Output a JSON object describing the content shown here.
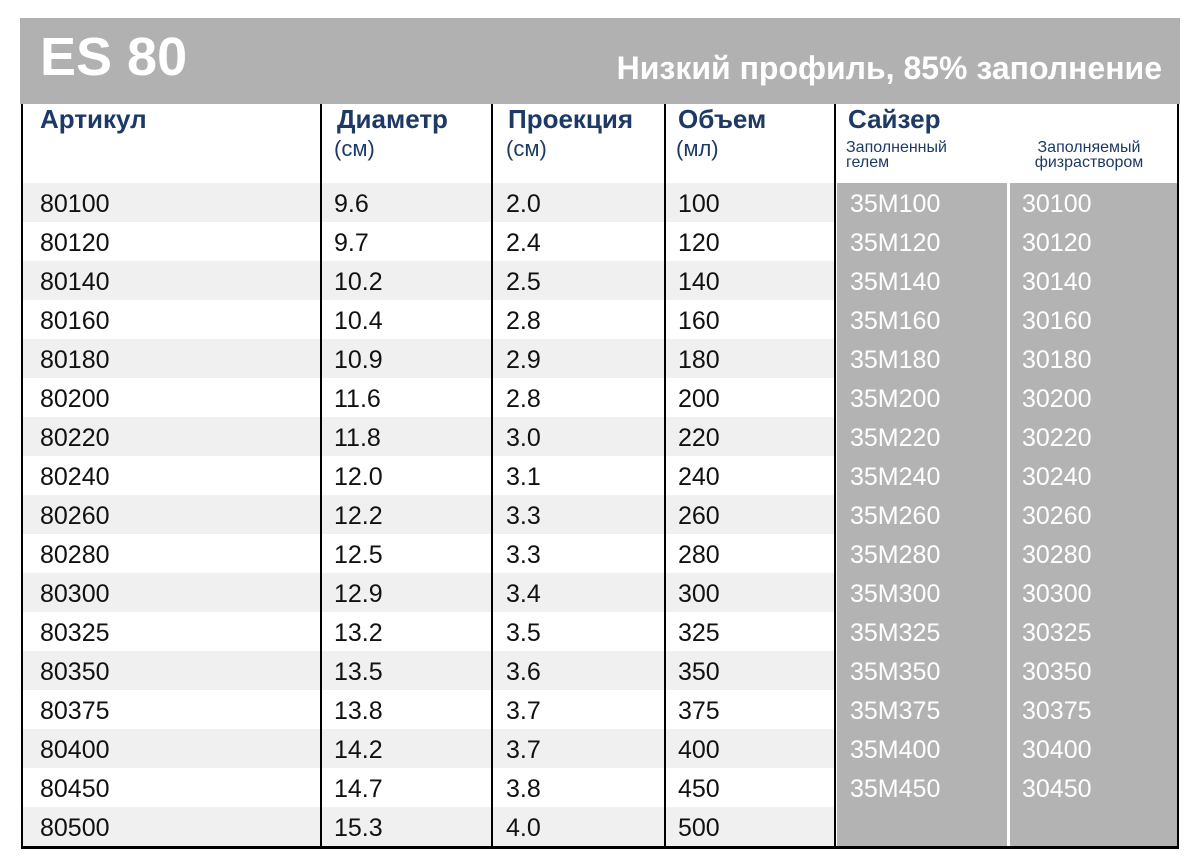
{
  "header": {
    "title": "ES 80",
    "subtitle": "Низкий профиль, 85% заполнение"
  },
  "table": {
    "columns": [
      {
        "label": "Артикул"
      },
      {
        "label": "Диаметр",
        "unit": "(см)"
      },
      {
        "label": "Проекция",
        "unit": "(см)"
      },
      {
        "label": "Объем",
        "unit": "(мл)"
      },
      {
        "label": "Сайзер",
        "subcolumns": [
          "Заполненный гелем",
          "Заполняемый физраствором"
        ]
      }
    ],
    "rows": [
      [
        "80100",
        "9.6",
        "2.0",
        "100",
        "35M100",
        "30100"
      ],
      [
        "80120",
        "9.7",
        "2.4",
        "120",
        "35M120",
        "30120"
      ],
      [
        "80140",
        "10.2",
        "2.5",
        "140",
        "35M140",
        "30140"
      ],
      [
        "80160",
        "10.4",
        "2.8",
        "160",
        "35M160",
        "30160"
      ],
      [
        "80180",
        "10.9",
        "2.9",
        "180",
        "35M180",
        "30180"
      ],
      [
        "80200",
        "11.6",
        "2.8",
        "200",
        "35M200",
        "30200"
      ],
      [
        "80220",
        "11.8",
        "3.0",
        "220",
        "35M220",
        "30220"
      ],
      [
        "80240",
        "12.0",
        "3.1",
        "240",
        "35M240",
        "30240"
      ],
      [
        "80260",
        "12.2",
        "3.3",
        "260",
        "35M260",
        "30260"
      ],
      [
        "80280",
        "12.5",
        "3.3",
        "280",
        "35M280",
        "30280"
      ],
      [
        "80300",
        "12.9",
        "3.4",
        "300",
        "35M300",
        "30300"
      ],
      [
        "80325",
        "13.2",
        "3.5",
        "325",
        "35M325",
        "30325"
      ],
      [
        "80350",
        "13.5",
        "3.6",
        "350",
        "35M350",
        "30350"
      ],
      [
        "80375",
        "13.8",
        "3.7",
        "375",
        "35M375",
        "30375"
      ],
      [
        "80400",
        "14.2",
        "3.7",
        "400",
        "35M400",
        "30400"
      ],
      [
        "80450",
        "14.7",
        "3.8",
        "450",
        "35M450",
        "30450"
      ],
      [
        "80500",
        "15.3",
        "4.0",
        "500"
      ]
    ]
  }
}
